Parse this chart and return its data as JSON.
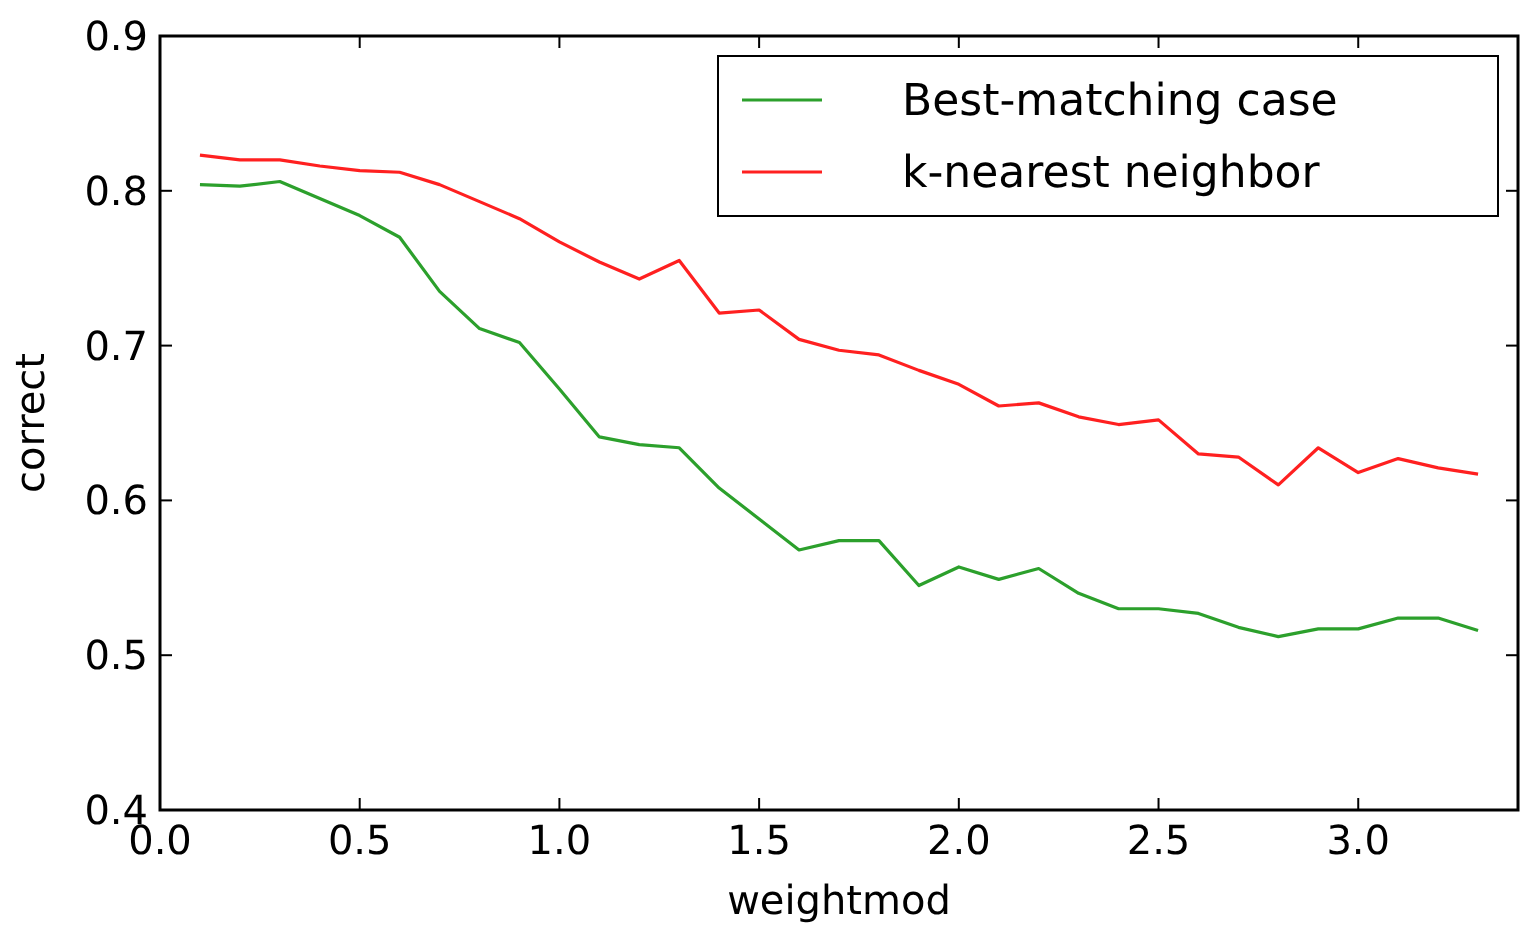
{
  "chart_data": {
    "type": "line",
    "xlabel": "weightmod",
    "ylabel": "correct",
    "x": [
      0.1,
      0.2,
      0.3,
      0.4,
      0.5,
      0.6,
      0.7,
      0.8,
      0.9,
      1.0,
      1.1,
      1.2,
      1.3,
      1.4,
      1.5,
      1.6,
      1.7,
      1.8,
      1.9,
      2.0,
      2.1,
      2.2,
      2.3,
      2.4,
      2.5,
      2.6,
      2.7,
      2.8,
      2.9,
      3.0,
      3.1,
      3.2,
      3.3
    ],
    "series": [
      {
        "name": "Best-matching case",
        "color": "#2ca02c",
        "values": [
          0.804,
          0.803,
          0.806,
          0.795,
          0.784,
          0.77,
          0.735,
          0.711,
          0.702,
          0.672,
          0.641,
          0.636,
          0.634,
          0.608,
          0.588,
          0.568,
          0.574,
          0.574,
          0.545,
          0.557,
          0.549,
          0.556,
          0.54,
          0.53,
          0.53,
          0.527,
          0.518,
          0.512,
          0.517,
          0.517,
          0.524,
          0.524,
          0.516
        ]
      },
      {
        "name": "k-nearest neighbor",
        "color": "#ff2020",
        "values": [
          0.823,
          0.82,
          0.82,
          0.816,
          0.813,
          0.812,
          0.804,
          0.793,
          0.782,
          0.767,
          0.754,
          0.743,
          0.755,
          0.721,
          0.723,
          0.704,
          0.697,
          0.694,
          0.684,
          0.675,
          0.661,
          0.663,
          0.654,
          0.649,
          0.652,
          0.63,
          0.628,
          0.61,
          0.634,
          0.618,
          0.627,
          0.621,
          0.617
        ]
      }
    ],
    "xlim": [
      0,
      3.4
    ],
    "xticks": [
      {
        "value": 0,
        "label": "0.0"
      },
      0.5,
      {
        "value": 1,
        "label": "1.0"
      },
      1.5,
      {
        "value": 2,
        "label": "2.0"
      },
      2.5,
      {
        "value": 3,
        "label": "3.0"
      }
    ],
    "ylim": [
      0.4,
      0.9
    ],
    "yticks": [
      0.4,
      0.5,
      0.6,
      0.7,
      0.8,
      0.9
    ],
    "grid": false,
    "legend": "top right",
    "marker": "none",
    "line_style": "solid"
  }
}
